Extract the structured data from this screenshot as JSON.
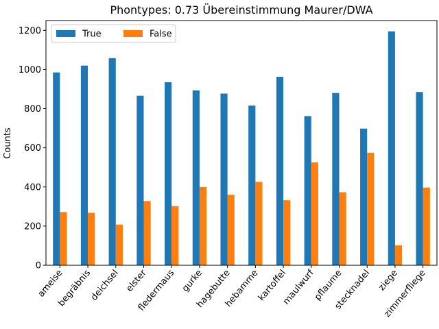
{
  "chart_data": {
    "type": "bar",
    "title": "Phontypes: 0.73 Übereinstimmung Maurer/DWA",
    "xlabel": "",
    "ylabel": "Counts",
    "ylim": [
      0,
      1250
    ],
    "yticks": [
      0,
      200,
      400,
      600,
      800,
      1000,
      1200
    ],
    "grid": false,
    "legend_position": "top-left",
    "categories": [
      "ameise",
      "begräbnis",
      "deichsel",
      "elster",
      "fledermaus",
      "gurke",
      "hagebutte",
      "hebamme",
      "kartoffel",
      "maulwurf",
      "pflaume",
      "stecknadel",
      "ziege",
      "zimmerfliege"
    ],
    "series": [
      {
        "name": "True",
        "color": "#1f77b4",
        "values": [
          985,
          1020,
          1058,
          866,
          935,
          893,
          877,
          816,
          963,
          762,
          880,
          698,
          1195,
          885
        ]
      },
      {
        "name": "False",
        "color": "#ff7f0e",
        "values": [
          272,
          268,
          208,
          328,
          302,
          400,
          360,
          426,
          332,
          526,
          373,
          575,
          102,
          397
        ]
      }
    ]
  }
}
